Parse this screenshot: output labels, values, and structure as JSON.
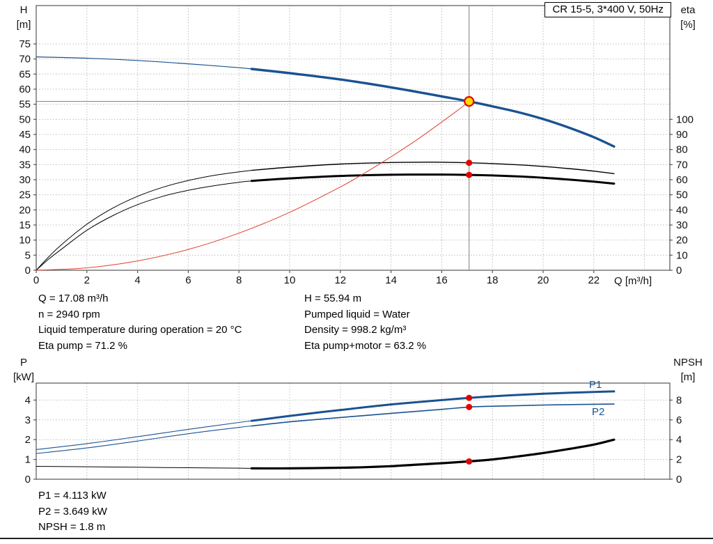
{
  "title_box": "CR 15-5, 3*400 V, 50Hz",
  "colors": {
    "curve_blue": "#1a5291",
    "curve_black": "#000000",
    "curve_red": "#e0402e",
    "dot_red": "#e60000",
    "dot_yellow": "#ffdc00",
    "grid": "#bcbcbc",
    "crosshair": "#8a8a8a"
  },
  "info_top": {
    "col1": [
      "Q = 17.08 m³/h",
      "n = 2940 rpm",
      "Liquid temperature during operation = 20 °C",
      "Eta pump = 71.2 %"
    ],
    "col2": [
      "H = 55.94 m",
      "Pumped liquid = Water",
      "Density = 998.2 kg/m³",
      "Eta pump+motor = 63.2 %"
    ]
  },
  "info_bottom": [
    "P1 = 4.113 kW",
    "P2 = 3.649 kW",
    "NPSH = 1.8 m"
  ],
  "chart_data": [
    {
      "id": "hq",
      "type": "line",
      "title": "CR 15-5, 3*400 V, 50Hz",
      "x_axis": {
        "label": "Q [m³/h]",
        "min": 0,
        "max": 25,
        "ticks": [
          0,
          2,
          4,
          6,
          8,
          10,
          12,
          14,
          16,
          18,
          20,
          22
        ],
        "grid_ticks": [
          2,
          4,
          6,
          8,
          10,
          12,
          14,
          16,
          18,
          20,
          22,
          24
        ]
      },
      "y_left": {
        "label_line1": "H",
        "label_line2": "[m]",
        "min": 0,
        "ticks": [
          0,
          5,
          10,
          15,
          20,
          25,
          30,
          35,
          40,
          45,
          50,
          55,
          60,
          65,
          70,
          75
        ]
      },
      "y_right": {
        "label_line1": "eta",
        "label_line2": "[%]",
        "ticks": [
          0,
          10,
          20,
          30,
          40,
          50,
          60,
          70,
          80,
          90,
          100
        ],
        "left_units_per_unit": 0.5
      },
      "crosshair": {
        "x": 17.08,
        "y": 55.94
      },
      "series": [
        {
          "name": "head-lead",
          "axis": "left",
          "color": "#1a5291",
          "width": 1.2,
          "points": [
            [
              0,
              70.7
            ],
            [
              2,
              70.25
            ],
            [
              4,
              69.5
            ],
            [
              6,
              68.4
            ],
            [
              8,
              67.1
            ],
            [
              8.5,
              66.7
            ]
          ]
        },
        {
          "name": "head",
          "axis": "left",
          "color": "#1a5291",
          "width": 3.4,
          "points": [
            [
              8.5,
              66.7
            ],
            [
              10,
              65.3
            ],
            [
              12,
              63.2
            ],
            [
              14,
              60.6
            ],
            [
              16,
              57.6
            ],
            [
              17.08,
              55.94
            ],
            [
              18,
              54.3
            ],
            [
              19,
              52.4
            ],
            [
              20,
              50.1
            ],
            [
              21,
              47.3
            ],
            [
              22,
              44.1
            ],
            [
              22.8,
              41.0
            ]
          ]
        },
        {
          "name": "eta-pump-lead",
          "axis": "right",
          "color": "#000000",
          "width": 1,
          "points": [
            [
              0,
              0
            ],
            [
              0.5,
              9
            ],
            [
              1,
              17
            ],
            [
              2,
              30.5
            ],
            [
              3,
              41
            ],
            [
              4,
              49
            ],
            [
              5,
              55
            ],
            [
              6,
              59.5
            ],
            [
              7,
              62.8
            ],
            [
              8,
              65.2
            ],
            [
              8.5,
              66.2
            ]
          ]
        },
        {
          "name": "eta-pump",
          "axis": "right",
          "color": "#000000",
          "width": 1.4,
          "points": [
            [
              8.5,
              66.2
            ],
            [
              10,
              68.3
            ],
            [
              12,
              70.4
            ],
            [
              14,
              71.4
            ],
            [
              15,
              71.6
            ],
            [
              16,
              71.6
            ],
            [
              17.08,
              71.2
            ],
            [
              18,
              70.7
            ],
            [
              19,
              69.9
            ],
            [
              20,
              68.8
            ],
            [
              21,
              67.4
            ],
            [
              22,
              65.7
            ],
            [
              22.8,
              64.0
            ]
          ]
        },
        {
          "name": "eta-pump-motor-lead",
          "axis": "right",
          "color": "#000000",
          "width": 1,
          "points": [
            [
              0,
              0
            ],
            [
              0.5,
              7.5
            ],
            [
              1,
              14
            ],
            [
              2,
              26.5
            ],
            [
              3,
              36
            ],
            [
              4,
              43.5
            ],
            [
              5,
              49
            ],
            [
              6,
              53
            ],
            [
              7,
              56
            ],
            [
              8,
              58.3
            ],
            [
              8.5,
              59.2
            ]
          ]
        },
        {
          "name": "eta-pump-motor",
          "axis": "right",
          "color": "#000000",
          "width": 3,
          "points": [
            [
              8.5,
              59.2
            ],
            [
              10,
              60.9
            ],
            [
              12,
              62.5
            ],
            [
              14,
              63.3
            ],
            [
              15,
              63.4
            ],
            [
              16,
              63.4
            ],
            [
              17.08,
              63.2
            ],
            [
              18,
              62.8
            ],
            [
              19,
              62.2
            ],
            [
              20,
              61.3
            ],
            [
              21,
              60.1
            ],
            [
              22,
              58.7
            ],
            [
              22.8,
              57.4
            ]
          ]
        },
        {
          "name": "duty-line",
          "axis": "left",
          "color": "#e0402e",
          "width": 1,
          "points": [
            [
              0,
              0
            ],
            [
              2,
              0.8
            ],
            [
              4,
              3.1
            ],
            [
              6,
              6.9
            ],
            [
              8,
              12.3
            ],
            [
              10,
              19.2
            ],
            [
              12,
              27.6
            ],
            [
              13,
              32.4
            ],
            [
              14,
              37.6
            ],
            [
              15,
              43.1
            ],
            [
              16,
              49.1
            ],
            [
              16.6,
              52.8
            ],
            [
              17.08,
              55.94
            ]
          ]
        }
      ],
      "markers": [
        {
          "name": "operating-point-marker",
          "x": 17.08,
          "value": 55.94,
          "axis": "left",
          "type": "yellow-dot"
        },
        {
          "name": "eta-pump-marker",
          "x": 17.08,
          "value": 71.2,
          "axis": "right",
          "type": "red-dot"
        },
        {
          "name": "eta-pump-motor-marker",
          "x": 17.08,
          "value": 63.2,
          "axis": "right",
          "type": "red-dot"
        }
      ]
    },
    {
      "id": "power",
      "type": "line",
      "x_axis": {
        "min": 0,
        "max": 25,
        "ticks": [],
        "grid_ticks": [
          2,
          4,
          6,
          8,
          10,
          12,
          14,
          16,
          18,
          20,
          22,
          24
        ]
      },
      "y_left": {
        "label_line1": "P",
        "label_line2": "[kW]",
        "min": 0,
        "ticks": [
          0,
          1,
          2,
          3,
          4
        ]
      },
      "y_right": {
        "label_line1": "NPSH",
        "label_line2": "[m]",
        "ticks": [
          0,
          2,
          4,
          6,
          8
        ],
        "left_units_per_unit": 0.5
      },
      "series": [
        {
          "name": "p1-lead",
          "axis": "left",
          "color": "#1a5291",
          "width": 1.1,
          "points": [
            [
              0,
              1.5
            ],
            [
              2,
              1.8
            ],
            [
              4,
              2.15
            ],
            [
              6,
              2.52
            ],
            [
              8,
              2.87
            ],
            [
              8.5,
              2.95
            ]
          ]
        },
        {
          "name": "p1",
          "axis": "left",
          "color": "#1a5291",
          "width": 3,
          "points": [
            [
              8.5,
              2.95
            ],
            [
              10,
              3.2
            ],
            [
              12,
              3.5
            ],
            [
              14,
              3.78
            ],
            [
              16,
              4.0
            ],
            [
              17.08,
              4.113
            ],
            [
              18,
              4.19
            ],
            [
              19,
              4.26
            ],
            [
              20,
              4.32
            ],
            [
              21,
              4.37
            ],
            [
              22,
              4.41
            ],
            [
              22.8,
              4.44
            ]
          ]
        },
        {
          "name": "p2-lead",
          "axis": "left",
          "color": "#1a5291",
          "width": 1.1,
          "points": [
            [
              0,
              1.3
            ],
            [
              2,
              1.58
            ],
            [
              4,
              1.93
            ],
            [
              6,
              2.3
            ],
            [
              8,
              2.62
            ],
            [
              8.5,
              2.69
            ]
          ]
        },
        {
          "name": "p2",
          "axis": "left",
          "color": "#1a5291",
          "width": 1.6,
          "points": [
            [
              8.5,
              2.69
            ],
            [
              10,
              2.9
            ],
            [
              12,
              3.12
            ],
            [
              14,
              3.33
            ],
            [
              16,
              3.53
            ],
            [
              17.08,
              3.649
            ],
            [
              18,
              3.69
            ],
            [
              19,
              3.72
            ],
            [
              20,
              3.75
            ],
            [
              21,
              3.77
            ],
            [
              22,
              3.79
            ],
            [
              22.8,
              3.8
            ]
          ]
        },
        {
          "name": "npsh-lead",
          "axis": "right",
          "color": "#000000",
          "width": 1,
          "points": [
            [
              0,
              1.3
            ],
            [
              2,
              1.26
            ],
            [
              4,
              1.21
            ],
            [
              6,
              1.16
            ],
            [
              8,
              1.12
            ],
            [
              8.5,
              1.1
            ]
          ]
        },
        {
          "name": "npsh",
          "axis": "right",
          "color": "#000000",
          "width": 3.2,
          "points": [
            [
              8.5,
              1.1
            ],
            [
              10,
              1.1
            ],
            [
              12,
              1.16
            ],
            [
              13,
              1.22
            ],
            [
              14,
              1.32
            ],
            [
              15,
              1.47
            ],
            [
              16,
              1.62
            ],
            [
              17.08,
              1.8
            ],
            [
              18,
              2.0
            ],
            [
              19,
              2.3
            ],
            [
              20,
              2.65
            ],
            [
              21,
              3.05
            ],
            [
              22,
              3.5
            ],
            [
              22.8,
              4.0
            ]
          ]
        }
      ],
      "markers": [
        {
          "name": "p1-marker",
          "x": 17.08,
          "value": 4.113,
          "axis": "left",
          "type": "red-dot"
        },
        {
          "name": "p2-marker",
          "x": 17.08,
          "value": 3.649,
          "axis": "left",
          "type": "red-dot"
        },
        {
          "name": "npsh-marker",
          "x": 17.08,
          "value": 1.8,
          "axis": "right",
          "type": "red-dot"
        }
      ],
      "curve_labels": [
        {
          "text": "P1"
        },
        {
          "text": "P2"
        }
      ]
    }
  ]
}
